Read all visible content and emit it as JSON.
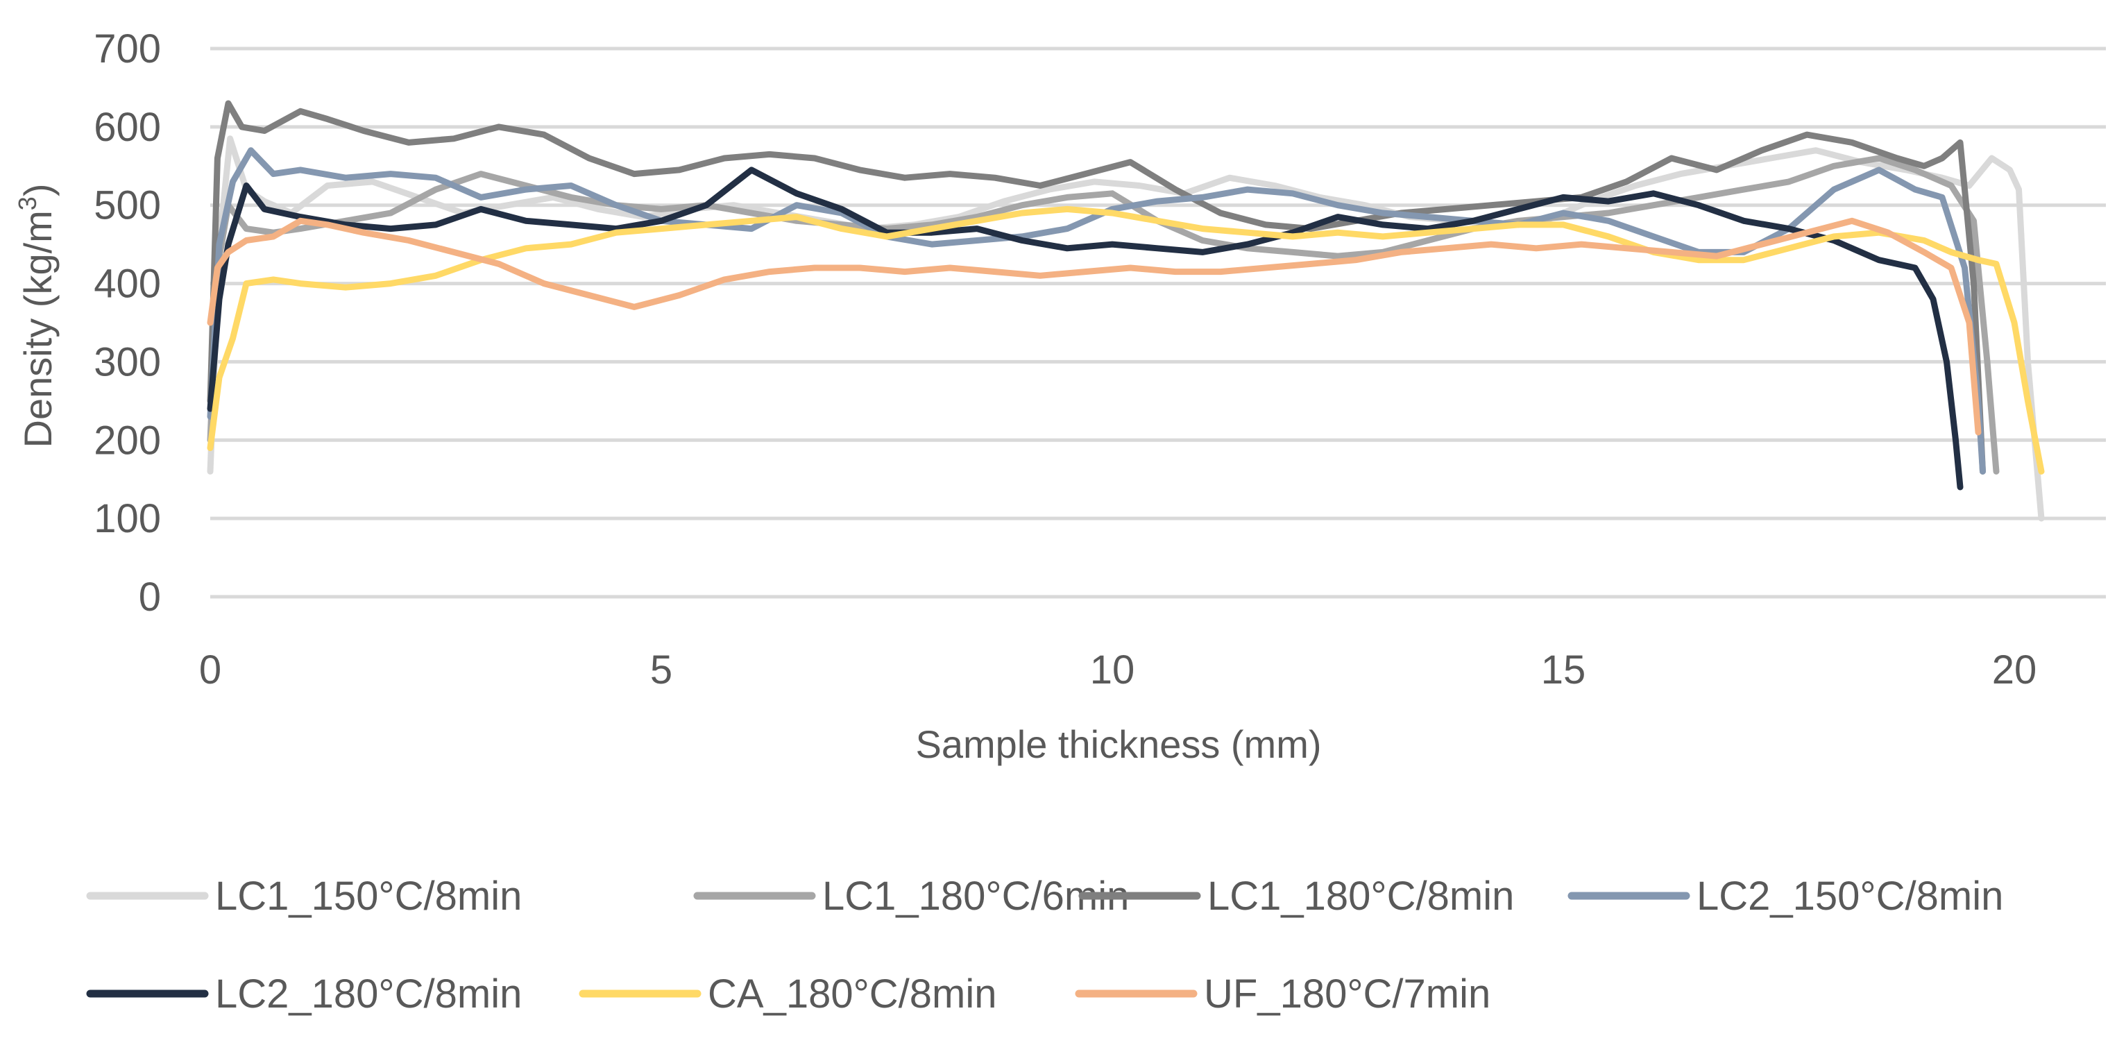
{
  "chart_data": {
    "type": "line",
    "title": "",
    "xlabel": "Sample thickness (mm)",
    "ylabel_main": "Density (kg/m",
    "ylabel_sup": "3",
    "ylabel_close": ")",
    "xlim": [
      0,
      21
    ],
    "ylim": [
      0,
      700
    ],
    "x_ticks": [
      0,
      5,
      10,
      15,
      20
    ],
    "x_tick_labels": [
      "0",
      "5",
      "10",
      "15",
      "20"
    ],
    "y_ticks": [
      0,
      100,
      200,
      300,
      400,
      500,
      600,
      700
    ],
    "y_tick_labels": [
      "0",
      "100",
      "200",
      "300",
      "400",
      "500",
      "600",
      "700"
    ],
    "grid": "horizontal",
    "legend_position": "bottom",
    "series": [
      {
        "name": "LC1_150°C/8min",
        "color": "#D9D9D9",
        "x": [
          0,
          0.1,
          0.22,
          0.4,
          0.6,
          0.9,
          1.3,
          1.8,
          2.3,
          2.8,
          3.3,
          3.8,
          4.3,
          4.8,
          5.3,
          5.8,
          6.3,
          6.8,
          7.3,
          7.8,
          8.3,
          8.8,
          9.3,
          9.8,
          10.3,
          10.8,
          11.3,
          11.8,
          12.3,
          12.8,
          13.3,
          13.8,
          14.3,
          14.8,
          15.3,
          15.8,
          16.3,
          16.8,
          17.3,
          17.8,
          18.3,
          18.8,
          19.2,
          19.5,
          19.75,
          19.95,
          20.05,
          20.15,
          20.3
        ],
        "values": [
          160,
          450,
          585,
          520,
          505,
          490,
          525,
          530,
          510,
          490,
          500,
          510,
          495,
          485,
          495,
          500,
          490,
          480,
          470,
          475,
          485,
          505,
          520,
          530,
          525,
          515,
          535,
          525,
          510,
          500,
          485,
          480,
          475,
          480,
          505,
          525,
          540,
          550,
          560,
          570,
          555,
          545,
          535,
          525,
          560,
          545,
          520,
          300,
          100
        ]
      },
      {
        "name": "LC1_180°C/6min",
        "color": "#A6A6A6",
        "x": [
          0,
          0.08,
          0.2,
          0.4,
          0.7,
          1,
          1.5,
          2,
          2.5,
          3,
          3.5,
          4,
          4.5,
          5,
          5.5,
          6,
          6.5,
          7,
          7.5,
          8,
          8.5,
          9,
          9.5,
          10,
          10.5,
          11,
          11.5,
          12,
          12.5,
          13,
          13.5,
          14,
          14.5,
          15,
          15.5,
          16,
          16.5,
          17,
          17.5,
          18,
          18.5,
          18.9,
          19.3,
          19.55,
          19.7,
          19.8
        ],
        "values": [
          200,
          420,
          500,
          470,
          465,
          470,
          480,
          490,
          520,
          540,
          525,
          510,
          500,
          495,
          500,
          490,
          480,
          475,
          470,
          475,
          485,
          500,
          510,
          515,
          480,
          455,
          445,
          440,
          435,
          440,
          455,
          470,
          480,
          485,
          490,
          500,
          510,
          520,
          530,
          550,
          560,
          545,
          525,
          480,
          300,
          160
        ]
      },
      {
        "name": "LC1_180°C/8min",
        "color": "#7F7F7F",
        "x": [
          0,
          0.08,
          0.2,
          0.35,
          0.6,
          1,
          1.3,
          1.7,
          2.2,
          2.7,
          3.2,
          3.7,
          4.2,
          4.7,
          5.2,
          5.7,
          6.2,
          6.7,
          7.2,
          7.7,
          8.2,
          8.7,
          9.2,
          9.7,
          10.2,
          10.7,
          11.2,
          11.7,
          12.2,
          12.7,
          13.2,
          13.7,
          14.2,
          14.7,
          15.2,
          15.7,
          16.2,
          16.7,
          17.2,
          17.7,
          18.2,
          18.7,
          19.0,
          19.2,
          19.4,
          19.55,
          19.65
        ],
        "values": [
          250,
          560,
          630,
          600,
          595,
          620,
          610,
          595,
          580,
          585,
          600,
          590,
          560,
          540,
          545,
          560,
          565,
          560,
          545,
          535,
          540,
          535,
          525,
          540,
          555,
          520,
          490,
          475,
          470,
          480,
          490,
          495,
          500,
          505,
          510,
          530,
          560,
          545,
          570,
          590,
          580,
          560,
          550,
          560,
          580,
          400,
          160
        ]
      },
      {
        "name": "LC2_150°C/8min",
        "color": "#8497B0",
        "x": [
          0,
          0.1,
          0.25,
          0.45,
          0.7,
          1,
          1.5,
          2,
          2.5,
          3,
          3.5,
          4,
          4.5,
          5,
          5.5,
          6,
          6.5,
          7,
          7.5,
          8,
          8.5,
          9,
          9.5,
          10,
          10.5,
          11,
          11.5,
          12,
          12.5,
          13,
          13.5,
          14,
          14.5,
          15,
          15.5,
          16,
          16.5,
          17,
          17.5,
          18,
          18.5,
          18.9,
          19.2,
          19.45,
          19.6,
          19.65
        ],
        "values": [
          230,
          450,
          530,
          570,
          540,
          545,
          535,
          540,
          535,
          510,
          520,
          525,
          500,
          480,
          475,
          470,
          500,
          490,
          460,
          450,
          455,
          460,
          470,
          495,
          505,
          510,
          520,
          515,
          500,
          490,
          485,
          480,
          475,
          490,
          480,
          460,
          440,
          440,
          470,
          520,
          545,
          520,
          510,
          420,
          250,
          160
        ]
      },
      {
        "name": "LC2_180°C/8min",
        "color": "#222F44",
        "x": [
          0,
          0.1,
          0.2,
          0.4,
          0.6,
          1,
          1.5,
          2,
          2.5,
          3,
          3.5,
          4,
          4.5,
          5,
          5.5,
          6,
          6.5,
          7,
          7.5,
          8,
          8.5,
          9,
          9.5,
          10,
          10.5,
          11,
          11.5,
          12,
          12.5,
          13,
          13.5,
          14,
          14.5,
          15,
          15.5,
          16,
          16.5,
          17,
          17.5,
          18,
          18.5,
          18.9,
          19.1,
          19.25,
          19.35,
          19.4
        ],
        "values": [
          240,
          380,
          450,
          525,
          495,
          485,
          475,
          470,
          475,
          495,
          480,
          475,
          470,
          480,
          500,
          545,
          515,
          495,
          465,
          465,
          470,
          455,
          445,
          450,
          445,
          440,
          450,
          465,
          485,
          475,
          470,
          480,
          495,
          510,
          505,
          515,
          500,
          480,
          470,
          455,
          430,
          420,
          380,
          300,
          200,
          140
        ]
      },
      {
        "name": "CA_180°C/8min",
        "color": "#FFD966",
        "x": [
          0,
          0.1,
          0.25,
          0.4,
          0.7,
          1,
          1.5,
          2,
          2.5,
          3,
          3.5,
          4,
          4.5,
          5,
          5.5,
          6,
          6.5,
          7,
          7.5,
          8,
          8.5,
          9,
          9.5,
          10,
          10.5,
          11,
          11.5,
          12,
          12.5,
          13,
          13.5,
          14,
          14.5,
          15,
          15.5,
          16,
          16.5,
          17,
          17.5,
          18,
          18.5,
          19,
          19.3,
          19.6,
          19.8,
          20,
          20.15,
          20.3
        ],
        "values": [
          190,
          280,
          330,
          400,
          405,
          400,
          395,
          400,
          410,
          430,
          445,
          450,
          465,
          470,
          475,
          480,
          485,
          470,
          460,
          470,
          480,
          490,
          495,
          490,
          480,
          470,
          465,
          460,
          465,
          460,
          465,
          470,
          475,
          475,
          460,
          440,
          430,
          430,
          445,
          460,
          465,
          455,
          440,
          430,
          425,
          350,
          250,
          160
        ]
      },
      {
        "name": "UF_180°C/7min",
        "color": "#F4B183",
        "x": [
          0,
          0.08,
          0.2,
          0.4,
          0.7,
          1,
          1.3,
          1.7,
          2.2,
          2.7,
          3.2,
          3.7,
          4.2,
          4.7,
          5.2,
          5.7,
          6.2,
          6.7,
          7.2,
          7.7,
          8.2,
          8.7,
          9.2,
          9.7,
          10.2,
          10.7,
          11.2,
          11.7,
          12.2,
          12.7,
          13.2,
          13.7,
          14.2,
          14.7,
          15.2,
          15.7,
          16.2,
          16.7,
          17.2,
          17.7,
          18.2,
          18.6,
          19.0,
          19.3,
          19.5,
          19.6
        ],
        "values": [
          350,
          420,
          440,
          455,
          460,
          480,
          475,
          465,
          455,
          440,
          425,
          400,
          385,
          370,
          385,
          405,
          415,
          420,
          420,
          415,
          420,
          415,
          410,
          415,
          420,
          415,
          415,
          420,
          425,
          430,
          440,
          445,
          450,
          445,
          450,
          445,
          440,
          435,
          450,
          465,
          480,
          465,
          440,
          420,
          350,
          210
        ]
      }
    ]
  }
}
